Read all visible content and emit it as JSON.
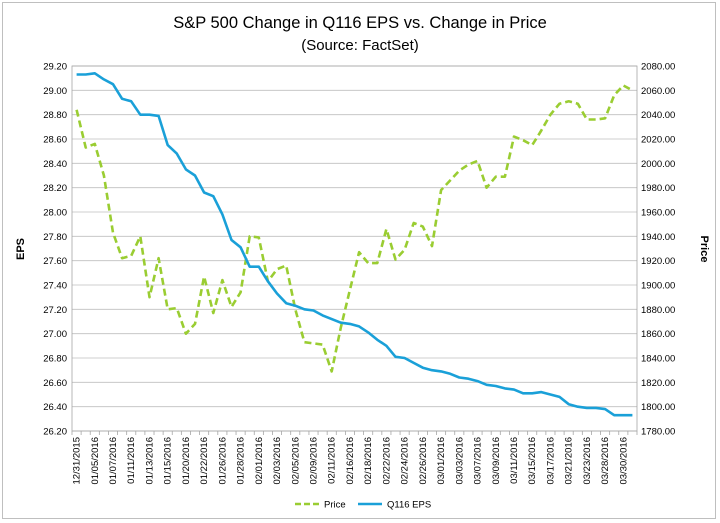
{
  "chart_data": {
    "type": "line",
    "title": "S&P 500 Change in Q116 EPS vs. Change in Price",
    "subtitle": "(Source: FactSet)",
    "ylabel": "EPS",
    "y2label": "Price",
    "ylim": [
      26.2,
      29.2
    ],
    "y2lim": [
      1780,
      2080
    ],
    "yticks": [
      "26.20",
      "26.40",
      "26.60",
      "26.80",
      "27.00",
      "27.20",
      "27.40",
      "27.60",
      "27.80",
      "28.00",
      "28.20",
      "28.40",
      "28.60",
      "28.80",
      "29.00",
      "29.20"
    ],
    "y2ticks": [
      "1780.00",
      "1800.00",
      "1820.00",
      "1840.00",
      "1860.00",
      "1880.00",
      "1900.00",
      "1920.00",
      "1940.00",
      "1960.00",
      "1980.00",
      "2000.00",
      "2020.00",
      "2040.00",
      "2060.00",
      "2080.00"
    ],
    "x": [
      "12/31/2015",
      "01/04/2016",
      "01/05/2016",
      "01/06/2016",
      "01/07/2016",
      "01/08/2016",
      "01/11/2016",
      "01/12/2016",
      "01/13/2016",
      "01/14/2016",
      "01/15/2016",
      "01/19/2016",
      "01/20/2016",
      "01/21/2016",
      "01/22/2016",
      "01/25/2016",
      "01/26/2016",
      "01/27/2016",
      "01/28/2016",
      "01/29/2016",
      "02/01/2016",
      "02/02/2016",
      "02/03/2016",
      "02/04/2016",
      "02/05/2016",
      "02/08/2016",
      "02/09/2016",
      "02/10/2016",
      "02/11/2016",
      "02/12/2016",
      "02/16/2016",
      "02/17/2016",
      "02/18/2016",
      "02/19/2016",
      "02/22/2016",
      "02/23/2016",
      "02/24/2016",
      "02/25/2016",
      "02/26/2016",
      "02/29/2016",
      "03/01/2016",
      "03/02/2016",
      "03/03/2016",
      "03/04/2016",
      "03/07/2016",
      "03/08/2016",
      "03/09/2016",
      "03/10/2016",
      "03/11/2016",
      "03/14/2016",
      "03/15/2016",
      "03/16/2016",
      "03/17/2016",
      "03/18/2016",
      "03/21/2016",
      "03/22/2016",
      "03/23/2016",
      "03/24/2016",
      "03/28/2016",
      "03/29/2016",
      "03/30/2016",
      "03/31/2016"
    ],
    "xtick_labels": [
      "12/31/2015",
      "01/05/2016",
      "01/07/2016",
      "01/11/2016",
      "01/13/2016",
      "01/15/2016",
      "01/20/2016",
      "01/22/2016",
      "01/26/2016",
      "01/28/2016",
      "02/01/2016",
      "02/03/2016",
      "02/05/2016",
      "02/09/2016",
      "02/11/2016",
      "02/16/2016",
      "02/18/2016",
      "02/22/2016",
      "02/24/2016",
      "02/26/2016",
      "03/01/2016",
      "03/03/2016",
      "03/07/2016",
      "03/09/2016",
      "03/11/2016",
      "03/15/2016",
      "03/17/2016",
      "03/21/2016",
      "03/23/2016",
      "03/28/2016",
      "03/30/2016"
    ],
    "series": [
      {
        "name": "Price",
        "axis": "right",
        "color": "#9ACD32",
        "style": "dashed",
        "values": [
          2044,
          2013,
          2016,
          1990,
          1943,
          1922,
          1924,
          1940,
          1890,
          1922,
          1880,
          1881,
          1860,
          1868,
          1907,
          1877,
          1904,
          1882,
          1894,
          1940,
          1939,
          1903,
          1913,
          1916,
          1880,
          1853,
          1852,
          1851,
          1829,
          1865,
          1896,
          1927,
          1918,
          1918,
          1946,
          1921,
          1929,
          1951,
          1948,
          1932,
          1978,
          1986,
          1994,
          1999,
          2002,
          1980,
          1989,
          1989,
          2022,
          2019,
          2015,
          2027,
          2040,
          2049,
          2051,
          2049,
          2036,
          2036,
          2037,
          2056,
          2064,
          2060
        ]
      },
      {
        "name": "Q116 EPS",
        "axis": "left",
        "color": "#1AA0D8",
        "style": "solid",
        "values": [
          29.13,
          29.13,
          29.14,
          29.09,
          29.05,
          28.93,
          28.91,
          28.8,
          28.8,
          28.79,
          28.55,
          28.48,
          28.35,
          28.3,
          28.16,
          28.13,
          27.98,
          27.77,
          27.71,
          27.55,
          27.55,
          27.43,
          27.33,
          27.25,
          27.23,
          27.2,
          27.19,
          27.15,
          27.12,
          27.09,
          27.08,
          27.06,
          27.01,
          26.95,
          26.9,
          26.81,
          26.8,
          26.76,
          26.72,
          26.7,
          26.69,
          26.67,
          26.64,
          26.63,
          26.61,
          26.58,
          26.57,
          26.55,
          26.54,
          26.51,
          26.51,
          26.52,
          26.5,
          26.48,
          26.42,
          26.4,
          26.39,
          26.39,
          26.38,
          26.33,
          26.33,
          26.33
        ]
      }
    ],
    "grid": true,
    "legend_position": "bottom-center"
  }
}
